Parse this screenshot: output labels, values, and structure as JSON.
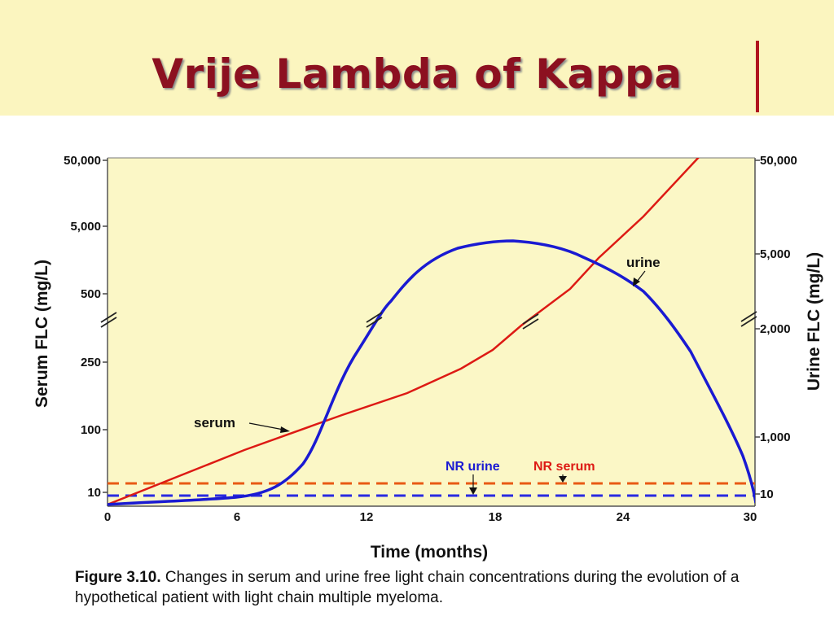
{
  "title": "Vrije Lambda of Kappa",
  "caption": {
    "label": "Figure 3.10.",
    "text": "Changes in serum and urine free light chain concentrations during the evolution of a hypothetical patient with light chain multiple myeloma."
  },
  "colors": {
    "serum": "#dd1a14",
    "urine": "#1a1ad2",
    "plot_background": "#fbf7c6",
    "title": "#8c1020"
  },
  "chart_data": {
    "type": "line",
    "xlabel": "Time (months)",
    "ylabel_left": "Serum FLC (mg/L)",
    "ylabel_right": "Urine FLC (mg/L)",
    "x_ticks": [
      0,
      6,
      12,
      18,
      24,
      30
    ],
    "xlim": [
      0,
      30
    ],
    "y_left_ticks": [
      "10",
      "100",
      "250",
      "500",
      "5,000",
      "50,000"
    ],
    "y_right_ticks": [
      "10",
      "1,000",
      "2,000",
      "5,000",
      "50,000"
    ],
    "scale": "broken axis (segmented, non-linear)",
    "series": [
      {
        "name": "serum",
        "axis": "left",
        "x": [
          0,
          6,
          12,
          16.5,
          18,
          20,
          22,
          24,
          26,
          28
        ],
        "y": [
          10,
          50,
          160,
          240,
          280,
          500,
          1000,
          5000,
          15000,
          50000
        ]
      },
      {
        "name": "urine",
        "axis": "right",
        "x": [
          0,
          6,
          8,
          10,
          11,
          12,
          13.5,
          15,
          16.5,
          19,
          21.5,
          24,
          26,
          27.5,
          29,
          30
        ],
        "y": [
          10,
          15,
          50,
          300,
          1000,
          1800,
          2500,
          4000,
          5500,
          6000,
          5500,
          3000,
          2400,
          1800,
          800,
          10
        ]
      }
    ],
    "reference_lines": [
      {
        "name": "NR serum",
        "label": "NR serum",
        "style": "dashed",
        "color": "#e85a14"
      },
      {
        "name": "NR urine",
        "label": "NR urine",
        "style": "dashed",
        "color": "#2a2ae0"
      }
    ],
    "annotations": [
      "serum",
      "urine",
      "NR urine",
      "NR serum"
    ],
    "grid": false,
    "legend": "none (inline labels)"
  }
}
